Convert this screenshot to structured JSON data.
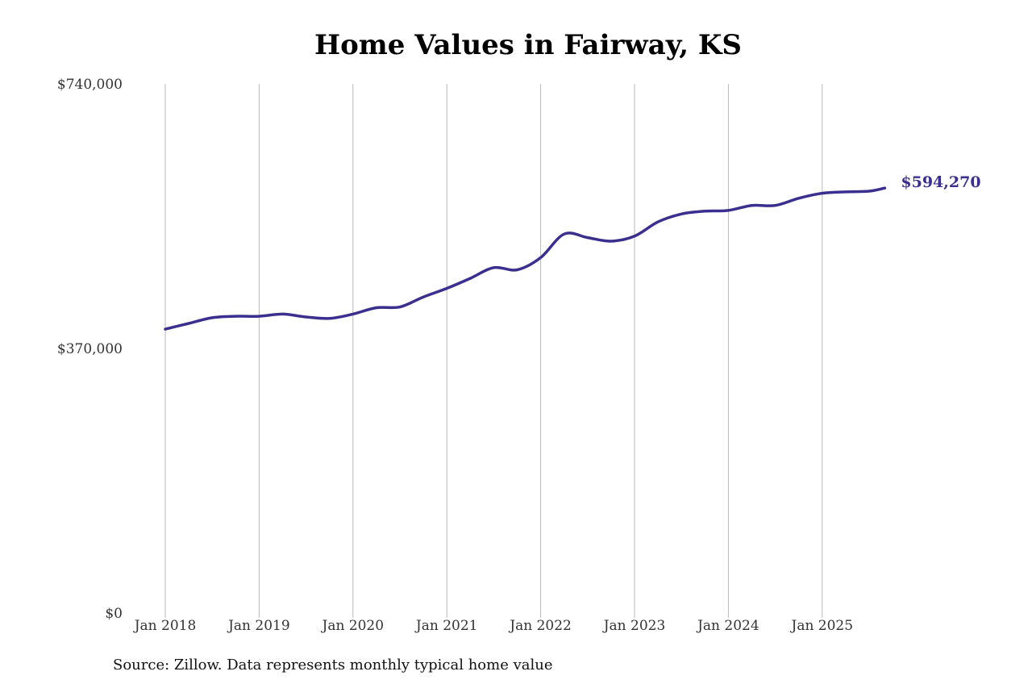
{
  "chart_data": {
    "type": "line",
    "title": "Home Values in Fairway, KS",
    "source": "Source: Zillow. Data represents monthly typical home value",
    "xlabel": "",
    "ylabel": "",
    "ylim": [
      0,
      740000
    ],
    "y_ticks": [
      0,
      370000,
      740000
    ],
    "y_tick_labels": [
      "$0",
      "$370,000",
      "$740,000"
    ],
    "x_ticks": [
      "Jan 2018",
      "Jan 2019",
      "Jan 2020",
      "Jan 2021",
      "Jan 2022",
      "Jan 2023",
      "Jan 2024",
      "Jan 2025"
    ],
    "grid": "vertical",
    "line_color": "#3a2f8f",
    "end_label": "$594,270",
    "series": [
      {
        "x": [
          "2018-01",
          "2018-04",
          "2018-07",
          "2018-10",
          "2019-01",
          "2019-04",
          "2019-07",
          "2019-10",
          "2020-01",
          "2020-04",
          "2020-07",
          "2020-10",
          "2021-01",
          "2021-04",
          "2021-07",
          "2021-10",
          "2022-01",
          "2022-04",
          "2022-07",
          "2022-10",
          "2023-01",
          "2023-04",
          "2023-07",
          "2023-10",
          "2024-01",
          "2024-04",
          "2024-07",
          "2024-10",
          "2025-01",
          "2025-04",
          "2025-07",
          "2025-09"
        ],
        "values": [
          397000,
          405000,
          413000,
          415000,
          415000,
          418000,
          414000,
          412000,
          418000,
          427000,
          428000,
          442000,
          454000,
          468000,
          483000,
          480000,
          497000,
          530000,
          525000,
          520000,
          527000,
          547000,
          558000,
          562000,
          563000,
          570000,
          570000,
          580000,
          587000,
          589000,
          590000,
          594270
        ]
      }
    ]
  }
}
